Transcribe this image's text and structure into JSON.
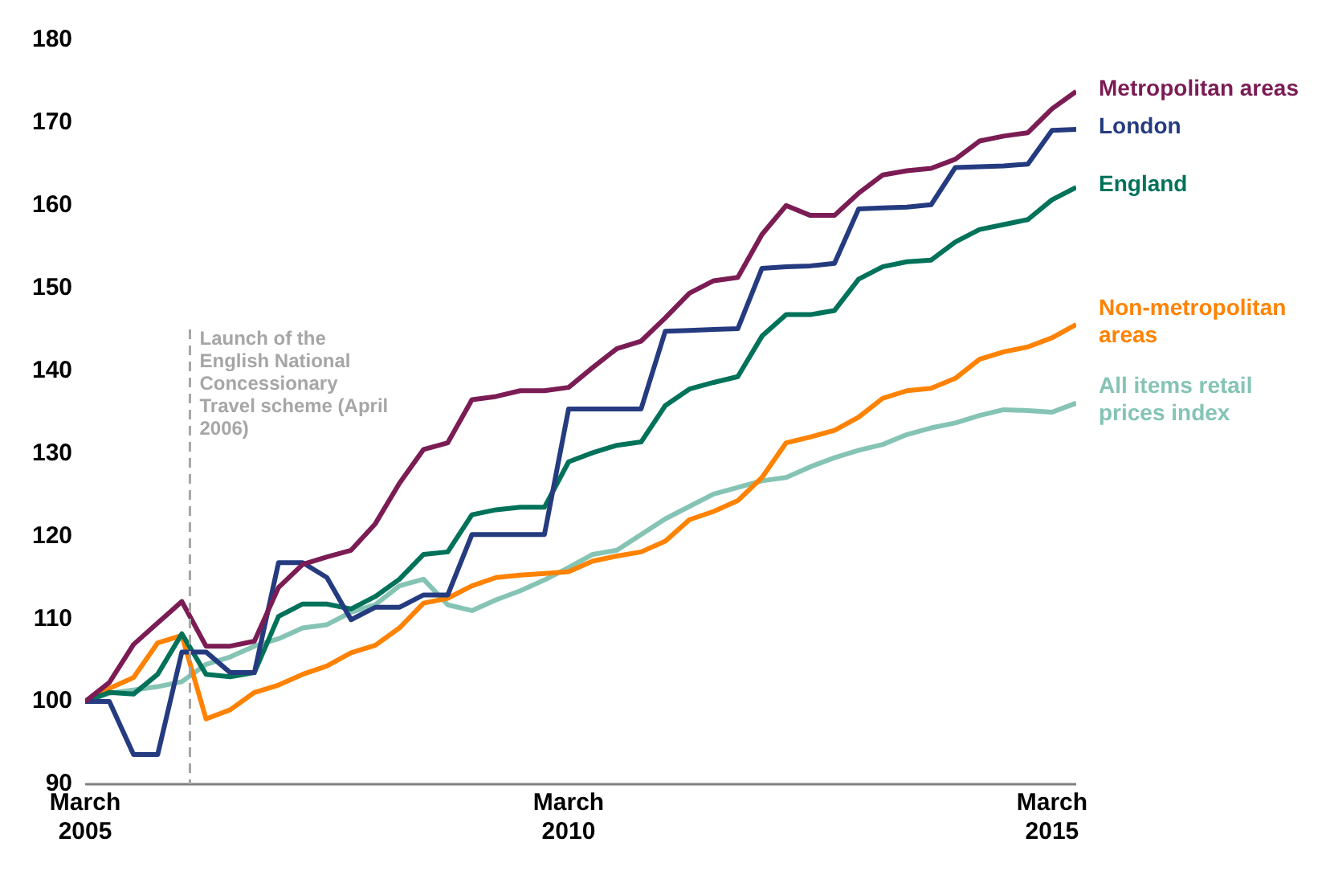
{
  "chart_data": {
    "type": "line",
    "legend": false,
    "grid": false,
    "marker": "none",
    "line_style": "solid",
    "x": [
      "2005-03",
      "2005-06",
      "2005-09",
      "2005-12",
      "2006-03",
      "2006-06",
      "2006-09",
      "2006-12",
      "2007-03",
      "2007-06",
      "2007-09",
      "2007-12",
      "2008-03",
      "2008-06",
      "2008-09",
      "2008-12",
      "2009-03",
      "2009-06",
      "2009-09",
      "2009-12",
      "2010-03",
      "2010-06",
      "2010-09",
      "2010-12",
      "2011-03",
      "2011-06",
      "2011-09",
      "2011-12",
      "2012-03",
      "2012-06",
      "2012-09",
      "2012-12",
      "2013-03",
      "2013-06",
      "2013-09",
      "2013-12",
      "2014-03",
      "2014-06",
      "2014-09",
      "2014-12",
      "2015-03",
      "2015-06"
    ],
    "xlim": [
      "2005-03",
      "2015-06"
    ],
    "xticks": [
      {
        "value": "2005-03",
        "label": "March\n2005"
      },
      {
        "value": "2010-03",
        "label": "March\n2010"
      },
      {
        "value": "2015-03",
        "label": "March\n2015"
      }
    ],
    "ylim": [
      90,
      180
    ],
    "yticks": [
      90,
      100,
      110,
      120,
      130,
      140,
      150,
      160,
      170,
      180
    ],
    "series": [
      {
        "name": "Metropolitan areas",
        "color": "#7b1c54",
        "values": [
          100,
          102.3,
          106.9,
          109.5,
          112.1,
          106.7,
          106.7,
          107.3,
          113.8,
          116.6,
          117.5,
          118.3,
          121.5,
          126.4,
          130.5,
          131.3,
          136.5,
          136.9,
          137.6,
          137.6,
          138,
          140.4,
          142.7,
          143.6,
          146.4,
          149.4,
          150.9,
          151.3,
          156.5,
          160,
          158.8,
          158.8,
          161.5,
          163.7,
          164.2,
          164.5,
          165.6,
          167.8,
          168.4,
          168.8,
          171.7,
          173.8
        ]
      },
      {
        "name": "London",
        "color": "#253b80",
        "values": [
          100,
          100,
          93.6,
          93.6,
          106,
          106,
          103.5,
          103.5,
          116.8,
          116.8,
          115,
          109.9,
          111.4,
          111.4,
          112.9,
          112.9,
          120.2,
          120.2,
          120.2,
          120.2,
          135.4,
          135.4,
          135.4,
          135.4,
          144.8,
          144.9,
          145,
          145.1,
          152.4,
          152.6,
          152.7,
          153,
          159.6,
          159.7,
          159.8,
          160.1,
          164.6,
          164.7,
          164.8,
          165,
          169.1,
          169.2
        ]
      },
      {
        "name": "England",
        "color": "#00725a",
        "values": [
          100,
          101.1,
          100.9,
          103.3,
          108.2,
          103.3,
          103,
          103.5,
          110.3,
          111.8,
          111.8,
          111.2,
          112.7,
          114.8,
          117.8,
          118.1,
          122.6,
          123.2,
          123.5,
          123.5,
          129,
          130.1,
          131,
          131.4,
          135.8,
          137.8,
          138.6,
          139.3,
          144.2,
          146.8,
          146.8,
          147.3,
          151.1,
          152.6,
          153.2,
          153.4,
          155.6,
          157.1,
          157.7,
          158.3,
          160.7,
          162.2
        ]
      },
      {
        "name": "Non-metropolitan areas",
        "color": "#ff8200",
        "values": [
          100,
          101.6,
          102.9,
          107.1,
          108,
          97.9,
          99,
          101.1,
          102,
          103.3,
          104.3,
          105.9,
          106.8,
          108.9,
          111.9,
          112.5,
          114,
          115,
          115.3,
          115.5,
          115.7,
          117,
          117.6,
          118.1,
          119.4,
          122,
          123,
          124.3,
          127.1,
          131.3,
          132,
          132.8,
          134.4,
          136.7,
          137.6,
          137.9,
          139.1,
          141.4,
          142.3,
          142.9,
          144,
          145.6
        ]
      },
      {
        "name": "All items retail prices index",
        "color": "#85c4b4",
        "values": [
          100,
          101,
          101.4,
          101.8,
          102.4,
          104.5,
          105.4,
          106.7,
          107.6,
          108.9,
          109.3,
          110.8,
          111.7,
          114,
          114.8,
          111.7,
          111,
          112.3,
          113.4,
          114.7,
          116.2,
          117.8,
          118.3,
          120.2,
          122.1,
          123.6,
          125.1,
          125.9,
          126.7,
          127.1,
          128.4,
          129.5,
          130.4,
          131.1,
          132.3,
          133.1,
          133.7,
          134.6,
          135.3,
          135.2,
          135,
          136.1
        ]
      }
    ],
    "ref_lines": [
      {
        "axis": "x",
        "value": "2006-04",
        "label": "Launch of the English National Concessionary Travel scheme (April 2006)",
        "color": "#a6a6a6",
        "line_style": "dashed"
      }
    ]
  }
}
